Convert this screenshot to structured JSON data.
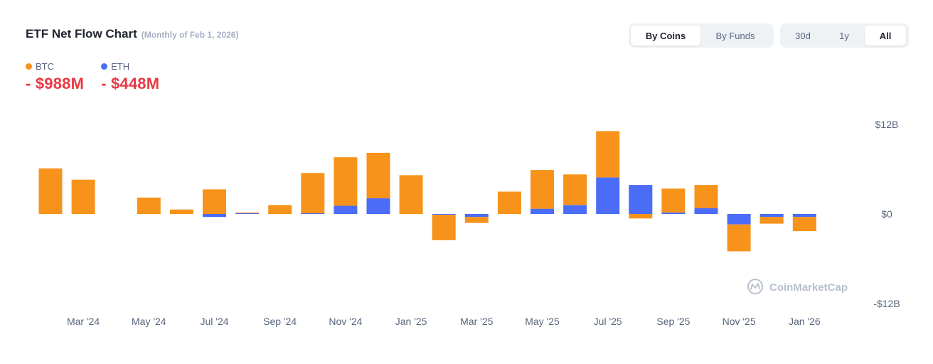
{
  "header": {
    "title": "ETF Net Flow Chart",
    "subtitle": "(Monthly of Feb 1, 2026)"
  },
  "legend": [
    {
      "name": "BTC",
      "value": "- $988M",
      "color": "#f7931a"
    },
    {
      "name": "ETH",
      "value": "- $448M",
      "color": "#4a6cf7"
    }
  ],
  "toggles": {
    "view": [
      {
        "label": "By Coins",
        "active": true
      },
      {
        "label": "By Funds",
        "active": false
      }
    ],
    "range": [
      {
        "label": "30d",
        "active": false
      },
      {
        "label": "1y",
        "active": false
      },
      {
        "label": "All",
        "active": true
      }
    ]
  },
  "watermark": "CoinMarketCap",
  "chart_data": {
    "type": "bar",
    "stacked": true,
    "categories": [
      "Feb '24",
      "Mar '24",
      "Apr '24",
      "May '24",
      "Jun '24",
      "Jul '24",
      "Aug '24",
      "Sep '24",
      "Oct '24",
      "Nov '24",
      "Dec '24",
      "Jan '25",
      "Feb '25",
      "Mar '25",
      "Apr '25",
      "May '25",
      "Jun '25",
      "Jul '25",
      "Aug '25",
      "Sep '25",
      "Oct '25",
      "Nov '25",
      "Dec '25",
      "Jan '26"
    ],
    "x_tick_labels": [
      "Mar '24",
      "May '24",
      "Jul '24",
      "Sep '24",
      "Nov '24",
      "Jan '25",
      "Mar '25",
      "May '25",
      "Jul '25",
      "Sep '25",
      "Nov '25",
      "Jan '26"
    ],
    "series": [
      {
        "name": "BTC",
        "color": "#f7931a",
        "values": [
          6.1,
          4.6,
          0.0,
          2.2,
          0.6,
          3.3,
          0.1,
          1.2,
          5.4,
          6.5,
          6.1,
          5.2,
          -3.4,
          -0.8,
          3.0,
          5.2,
          4.1,
          6.2,
          -0.6,
          3.2,
          3.1,
          -3.6,
          -0.9,
          -1.9
        ]
      },
      {
        "name": "ETH",
        "color": "#4a6cf7",
        "values": [
          0.0,
          0.0,
          0.0,
          0.0,
          0.0,
          -0.4,
          0.1,
          0.0,
          0.1,
          1.1,
          2.1,
          0.0,
          -0.1,
          -0.4,
          0.0,
          0.7,
          1.2,
          4.9,
          3.9,
          0.2,
          0.8,
          -1.4,
          -0.4,
          -0.4
        ]
      }
    ],
    "y_tick_labels": [
      "$12B",
      "$0",
      "-$12B"
    ],
    "ylim": [
      -12,
      12
    ],
    "grid": false,
    "legend_position": "top-left"
  }
}
